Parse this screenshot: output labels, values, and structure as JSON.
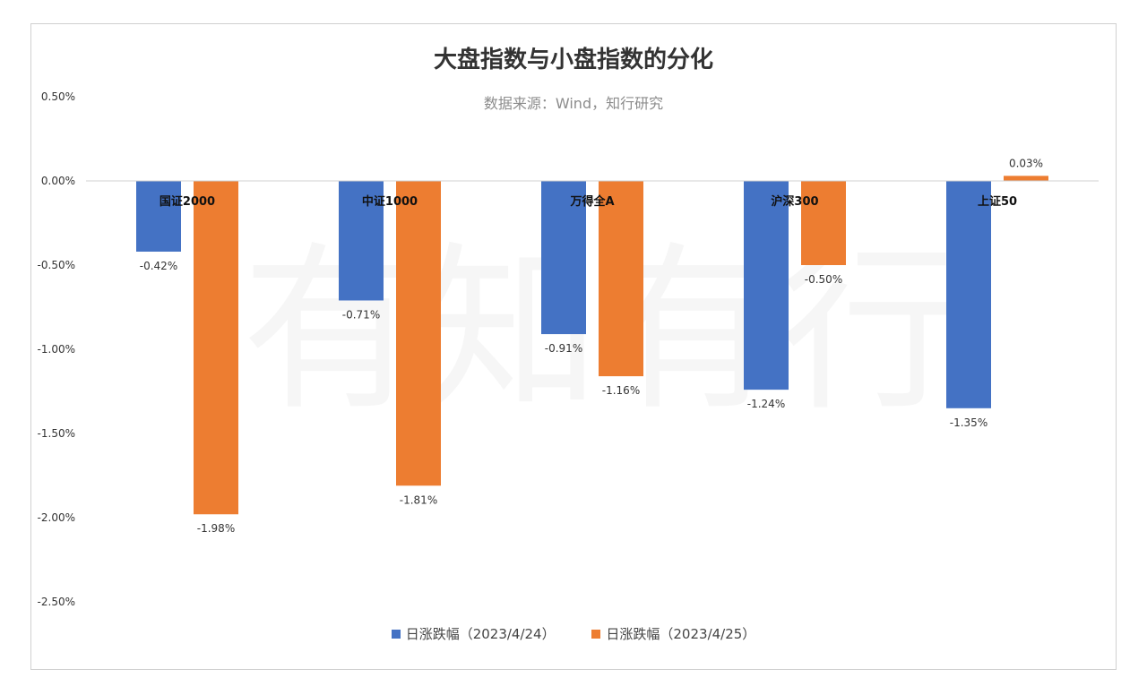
{
  "chart_data": {
    "type": "bar",
    "title": "大盘指数与小盘指数的分化",
    "subtitle": "数据来源：Wind，知行研究",
    "watermark": "有知有行",
    "categories": [
      "国证2000",
      "中证1000",
      "万得全A",
      "沪深300",
      "上证50"
    ],
    "series": [
      {
        "name": "日涨跌幅（2023/4/24）",
        "color": "#4472C4",
        "values": [
          -0.42,
          -0.71,
          -0.91,
          -1.24,
          -1.35
        ],
        "labels": [
          "-0.42%",
          "-0.71%",
          "-0.91%",
          "-1.24%",
          "-1.35%"
        ]
      },
      {
        "name": "日涨跌幅（2023/4/25）",
        "color": "#ED7D31",
        "values": [
          -1.98,
          -1.81,
          -1.16,
          -0.5,
          0.03
        ],
        "labels": [
          "-1.98%",
          "-1.81%",
          "-1.16%",
          "-0.50%",
          "0.03%"
        ]
      }
    ],
    "ylim": [
      -2.5,
      0.5
    ],
    "yticks": [
      0.5,
      0.0,
      -0.5,
      -1.0,
      -1.5,
      -2.0,
      -2.5
    ],
    "ytick_labels": [
      "0.50%",
      "0.00%",
      "-0.50%",
      "-1.00%",
      "-1.50%",
      "-2.00%",
      "-2.50%"
    ],
    "legend_position": "bottom",
    "grid": false
  }
}
